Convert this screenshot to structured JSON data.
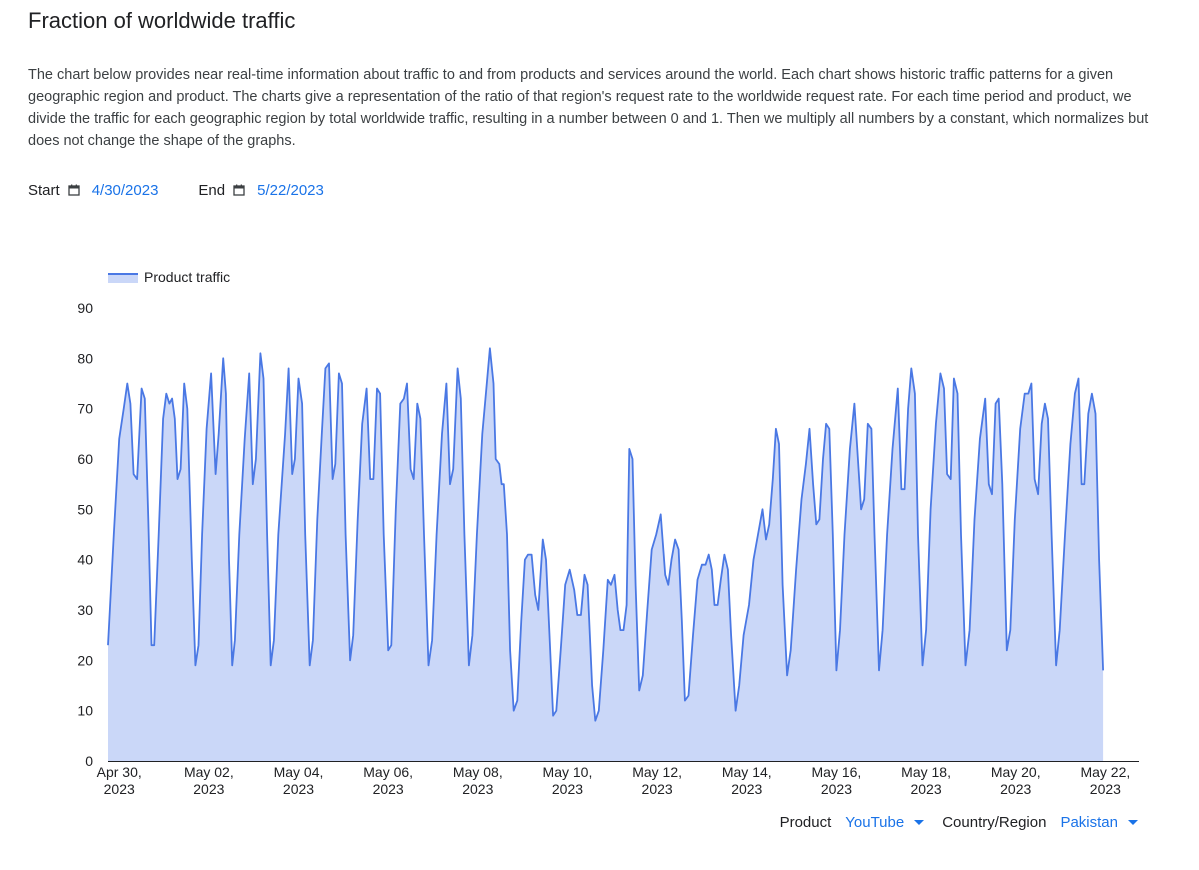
{
  "page": {
    "title": "Fraction of worldwide traffic",
    "description": "The chart below provides near real-time information about traffic to and from products and services around the world. Each chart shows historic traffic patterns for a given geographic region and product. The charts give a representation of the ratio of that region's request rate to the worldwide request rate. For each time period and product, we divide the traffic for each geographic region by total worldwide traffic, resulting in a number between 0 and 1. Then we multiply all numbers by a constant, which normalizes but does not change the shape of the graphs."
  },
  "dates": {
    "start_label": "Start",
    "start_value": "4/30/2023",
    "end_label": "End",
    "end_value": "5/22/2023",
    "calendar_icon": "calendar-icon"
  },
  "controls": {
    "product_label": "Product",
    "product_value": "YouTube",
    "region_label": "Country/Region",
    "region_value": "Pakistan",
    "dropdown_icon": "caret-down-icon"
  },
  "colors": {
    "line": "#4a78e4",
    "fill": "#cad7f8",
    "link": "#1a73e8",
    "axis": "#202124"
  },
  "chart_data": {
    "type": "area",
    "title": "",
    "xlabel": "",
    "ylabel": "",
    "ylim": [
      0,
      90
    ],
    "yticks": [
      0,
      10,
      20,
      30,
      40,
      50,
      60,
      70,
      80,
      90
    ],
    "grid": false,
    "legend_position": "top-left",
    "xticks": [
      {
        "day": 0,
        "line1": "Apr 30,",
        "line2": "2023"
      },
      {
        "day": 2,
        "line1": "May 02,",
        "line2": "2023"
      },
      {
        "day": 4,
        "line1": "May 04,",
        "line2": "2023"
      },
      {
        "day": 6,
        "line1": "May 06,",
        "line2": "2023"
      },
      {
        "day": 8,
        "line1": "May 08,",
        "line2": "2023"
      },
      {
        "day": 10,
        "line1": "May 10,",
        "line2": "2023"
      },
      {
        "day": 12,
        "line1": "May 12,",
        "line2": "2023"
      },
      {
        "day": 14,
        "line1": "May 14,",
        "line2": "2023"
      },
      {
        "day": 16,
        "line1": "May 16,",
        "line2": "2023"
      },
      {
        "day": 18,
        "line1": "May 18,",
        "line2": "2023"
      },
      {
        "day": 20,
        "line1": "May 20,",
        "line2": "2023"
      },
      {
        "day": 22,
        "line1": "May 22,",
        "line2": "2023"
      }
    ],
    "x_range_days": [
      -0.25,
      22.75
    ],
    "series": [
      {
        "name": "Product traffic",
        "points": [
          [
            -0.25,
            23
          ],
          [
            -0.12,
            45
          ],
          [
            0.0,
            64
          ],
          [
            0.1,
            70
          ],
          [
            0.18,
            75
          ],
          [
            0.25,
            71
          ],
          [
            0.32,
            57
          ],
          [
            0.4,
            56
          ],
          [
            0.5,
            74
          ],
          [
            0.57,
            72
          ],
          [
            0.65,
            48
          ],
          [
            0.72,
            23
          ],
          [
            0.78,
            23
          ],
          [
            0.88,
            45
          ],
          [
            0.98,
            68
          ],
          [
            1.05,
            73
          ],
          [
            1.12,
            71
          ],
          [
            1.18,
            72
          ],
          [
            1.24,
            68
          ],
          [
            1.3,
            56
          ],
          [
            1.37,
            58
          ],
          [
            1.45,
            75
          ],
          [
            1.52,
            70
          ],
          [
            1.62,
            40
          ],
          [
            1.7,
            19
          ],
          [
            1.77,
            23
          ],
          [
            1.85,
            45
          ],
          [
            1.95,
            66
          ],
          [
            2.05,
            77
          ],
          [
            2.15,
            57
          ],
          [
            2.22,
            65
          ],
          [
            2.32,
            80
          ],
          [
            2.38,
            73
          ],
          [
            2.45,
            40
          ],
          [
            2.52,
            19
          ],
          [
            2.58,
            24
          ],
          [
            2.68,
            45
          ],
          [
            2.8,
            64
          ],
          [
            2.9,
            77
          ],
          [
            2.98,
            55
          ],
          [
            3.05,
            60
          ],
          [
            3.15,
            81
          ],
          [
            3.22,
            76
          ],
          [
            3.3,
            45
          ],
          [
            3.38,
            19
          ],
          [
            3.45,
            24
          ],
          [
            3.55,
            45
          ],
          [
            3.7,
            65
          ],
          [
            3.78,
            78
          ],
          [
            3.86,
            57
          ],
          [
            3.92,
            60
          ],
          [
            4.0,
            76
          ],
          [
            4.08,
            71
          ],
          [
            4.15,
            45
          ],
          [
            4.25,
            19
          ],
          [
            4.32,
            24
          ],
          [
            4.42,
            48
          ],
          [
            4.52,
            65
          ],
          [
            4.6,
            78
          ],
          [
            4.68,
            79
          ],
          [
            4.76,
            56
          ],
          [
            4.82,
            59
          ],
          [
            4.9,
            77
          ],
          [
            4.97,
            75
          ],
          [
            5.05,
            45
          ],
          [
            5.15,
            20
          ],
          [
            5.22,
            25
          ],
          [
            5.32,
            48
          ],
          [
            5.42,
            67
          ],
          [
            5.52,
            74
          ],
          [
            5.6,
            56
          ],
          [
            5.67,
            56
          ],
          [
            5.75,
            74
          ],
          [
            5.82,
            73
          ],
          [
            5.9,
            45
          ],
          [
            6.0,
            22
          ],
          [
            6.07,
            23
          ],
          [
            6.17,
            50
          ],
          [
            6.27,
            71
          ],
          [
            6.35,
            72
          ],
          [
            6.42,
            75
          ],
          [
            6.5,
            58
          ],
          [
            6.57,
            56
          ],
          [
            6.65,
            71
          ],
          [
            6.72,
            68
          ],
          [
            6.8,
            45
          ],
          [
            6.9,
            19
          ],
          [
            6.98,
            24
          ],
          [
            7.08,
            45
          ],
          [
            7.2,
            65
          ],
          [
            7.3,
            75
          ],
          [
            7.38,
            55
          ],
          [
            7.45,
            58
          ],
          [
            7.55,
            78
          ],
          [
            7.62,
            72
          ],
          [
            7.7,
            45
          ],
          [
            7.8,
            19
          ],
          [
            7.88,
            25
          ],
          [
            7.98,
            45
          ],
          [
            8.1,
            65
          ],
          [
            8.2,
            75
          ],
          [
            8.27,
            82
          ],
          [
            8.35,
            75
          ],
          [
            8.4,
            60
          ],
          [
            8.48,
            59
          ],
          [
            8.53,
            55
          ],
          [
            8.58,
            55
          ],
          [
            8.65,
            45
          ],
          [
            8.72,
            22
          ],
          [
            8.8,
            10
          ],
          [
            8.88,
            12
          ],
          [
            8.97,
            28
          ],
          [
            9.05,
            40
          ],
          [
            9.12,
            41
          ],
          [
            9.2,
            41
          ],
          [
            9.28,
            33
          ],
          [
            9.35,
            30
          ],
          [
            9.45,
            44
          ],
          [
            9.52,
            40
          ],
          [
            9.6,
            25
          ],
          [
            9.68,
            9
          ],
          [
            9.75,
            10
          ],
          [
            9.85,
            22
          ],
          [
            9.95,
            35
          ],
          [
            10.05,
            38
          ],
          [
            10.15,
            34
          ],
          [
            10.22,
            29
          ],
          [
            10.3,
            29
          ],
          [
            10.38,
            37
          ],
          [
            10.45,
            35
          ],
          [
            10.55,
            15
          ],
          [
            10.62,
            8
          ],
          [
            10.7,
            10
          ],
          [
            10.8,
            22
          ],
          [
            10.9,
            36
          ],
          [
            10.97,
            35
          ],
          [
            11.05,
            37
          ],
          [
            11.12,
            30
          ],
          [
            11.18,
            26
          ],
          [
            11.25,
            26
          ],
          [
            11.32,
            31
          ],
          [
            11.38,
            62
          ],
          [
            11.45,
            60
          ],
          [
            11.52,
            35
          ],
          [
            11.6,
            14
          ],
          [
            11.68,
            17
          ],
          [
            11.78,
            30
          ],
          [
            11.88,
            42
          ],
          [
            11.98,
            45
          ],
          [
            12.08,
            49
          ],
          [
            12.18,
            37
          ],
          [
            12.25,
            35
          ],
          [
            12.32,
            40
          ],
          [
            12.4,
            44
          ],
          [
            12.48,
            42
          ],
          [
            12.55,
            28
          ],
          [
            12.62,
            12
          ],
          [
            12.7,
            13
          ],
          [
            12.8,
            25
          ],
          [
            12.9,
            36
          ],
          [
            13.0,
            39
          ],
          [
            13.08,
            39
          ],
          [
            13.15,
            41
          ],
          [
            13.22,
            38
          ],
          [
            13.28,
            31
          ],
          [
            13.35,
            31
          ],
          [
            13.42,
            36
          ],
          [
            13.5,
            41
          ],
          [
            13.58,
            38
          ],
          [
            13.65,
            25
          ],
          [
            13.75,
            10
          ],
          [
            13.83,
            15
          ],
          [
            13.93,
            25
          ],
          [
            14.05,
            31
          ],
          [
            14.15,
            40
          ],
          [
            14.25,
            45
          ],
          [
            14.35,
            50
          ],
          [
            14.43,
            44
          ],
          [
            14.5,
            47
          ],
          [
            14.58,
            56
          ],
          [
            14.65,
            66
          ],
          [
            14.72,
            63
          ],
          [
            14.8,
            35
          ],
          [
            14.9,
            17
          ],
          [
            14.98,
            22
          ],
          [
            15.1,
            38
          ],
          [
            15.22,
            52
          ],
          [
            15.32,
            59
          ],
          [
            15.4,
            66
          ],
          [
            15.48,
            55
          ],
          [
            15.55,
            47
          ],
          [
            15.62,
            48
          ],
          [
            15.7,
            60
          ],
          [
            15.77,
            67
          ],
          [
            15.84,
            66
          ],
          [
            15.92,
            45
          ],
          [
            16.0,
            18
          ],
          [
            16.08,
            26
          ],
          [
            16.18,
            45
          ],
          [
            16.3,
            62
          ],
          [
            16.4,
            71
          ],
          [
            16.48,
            60
          ],
          [
            16.55,
            50
          ],
          [
            16.62,
            52
          ],
          [
            16.7,
            67
          ],
          [
            16.78,
            66
          ],
          [
            16.85,
            45
          ],
          [
            16.95,
            18
          ],
          [
            17.03,
            26
          ],
          [
            17.13,
            45
          ],
          [
            17.25,
            62
          ],
          [
            17.37,
            74
          ],
          [
            17.45,
            54
          ],
          [
            17.52,
            54
          ],
          [
            17.6,
            70
          ],
          [
            17.67,
            78
          ],
          [
            17.75,
            73
          ],
          [
            17.82,
            45
          ],
          [
            17.92,
            19
          ],
          [
            18.0,
            26
          ],
          [
            18.1,
            50
          ],
          [
            18.22,
            67
          ],
          [
            18.32,
            77
          ],
          [
            18.4,
            74
          ],
          [
            18.47,
            57
          ],
          [
            18.55,
            56
          ],
          [
            18.62,
            76
          ],
          [
            18.7,
            73
          ],
          [
            18.78,
            45
          ],
          [
            18.88,
            19
          ],
          [
            18.97,
            26
          ],
          [
            19.08,
            48
          ],
          [
            19.2,
            64
          ],
          [
            19.32,
            72
          ],
          [
            19.4,
            55
          ],
          [
            19.47,
            53
          ],
          [
            19.55,
            71
          ],
          [
            19.62,
            72
          ],
          [
            19.7,
            55
          ],
          [
            19.8,
            22
          ],
          [
            19.88,
            26
          ],
          [
            19.98,
            48
          ],
          [
            20.1,
            66
          ],
          [
            20.2,
            73
          ],
          [
            20.28,
            73
          ],
          [
            20.35,
            75
          ],
          [
            20.42,
            56
          ],
          [
            20.5,
            53
          ],
          [
            20.58,
            67
          ],
          [
            20.65,
            71
          ],
          [
            20.72,
            68
          ],
          [
            20.8,
            45
          ],
          [
            20.9,
            19
          ],
          [
            20.98,
            26
          ],
          [
            21.1,
            45
          ],
          [
            21.22,
            63
          ],
          [
            21.32,
            73
          ],
          [
            21.4,
            76
          ],
          [
            21.47,
            55
          ],
          [
            21.53,
            55
          ],
          [
            21.62,
            69
          ],
          [
            21.7,
            73
          ],
          [
            21.78,
            69
          ],
          [
            21.86,
            40
          ],
          [
            21.95,
            18
          ]
        ]
      }
    ]
  }
}
